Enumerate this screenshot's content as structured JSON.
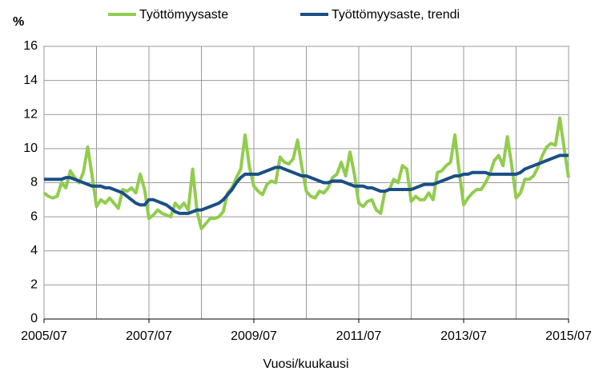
{
  "chart_data": {
    "type": "line",
    "y_label": "%",
    "x_label": "Vuosi/kuukausi",
    "categories": [
      "2005/07",
      null,
      null,
      null,
      null,
      null,
      null,
      null,
      null,
      null,
      null,
      null,
      null,
      null,
      null,
      null,
      null,
      null,
      null,
      null,
      null,
      null,
      null,
      null,
      "2007/07",
      null,
      null,
      null,
      null,
      null,
      null,
      null,
      null,
      null,
      null,
      null,
      null,
      null,
      null,
      null,
      null,
      null,
      null,
      null,
      null,
      null,
      null,
      null,
      "2009/07",
      null,
      null,
      null,
      null,
      null,
      null,
      null,
      null,
      null,
      null,
      null,
      null,
      null,
      null,
      null,
      null,
      null,
      null,
      null,
      null,
      null,
      null,
      null,
      "2011/07",
      null,
      null,
      null,
      null,
      null,
      null,
      null,
      null,
      null,
      null,
      null,
      null,
      null,
      null,
      null,
      null,
      null,
      null,
      null,
      null,
      null,
      null,
      null,
      "2013/07",
      null,
      null,
      null,
      null,
      null,
      null,
      null,
      null,
      null,
      null,
      null,
      null,
      null,
      null,
      null,
      null,
      null,
      null,
      null,
      null,
      null,
      null,
      null,
      "2015/07"
    ],
    "series": [
      {
        "name": "Työttömyysaste",
        "color": "#92cc4f",
        "values": [
          7.4,
          7.2,
          7.1,
          7.2,
          8.0,
          7.7,
          8.7,
          8.3,
          8.0,
          8.6,
          10.1,
          8.4,
          6.6,
          7.0,
          6.8,
          7.1,
          6.8,
          6.5,
          7.6,
          7.5,
          7.7,
          7.4,
          8.5,
          7.6,
          5.9,
          6.1,
          6.4,
          6.2,
          6.1,
          6.0,
          6.8,
          6.5,
          6.8,
          6.4,
          8.8,
          6.3,
          5.3,
          5.6,
          5.9,
          5.9,
          6.0,
          6.3,
          7.4,
          7.7,
          8.3,
          8.8,
          10.8,
          8.9,
          7.8,
          7.5,
          7.3,
          7.9,
          8.1,
          8.0,
          9.5,
          9.2,
          9.1,
          9.4,
          10.5,
          8.9,
          7.5,
          7.2,
          7.1,
          7.5,
          7.4,
          7.7,
          8.3,
          8.5,
          9.2,
          8.4,
          9.8,
          8.5,
          6.8,
          6.6,
          6.9,
          7.0,
          6.4,
          6.2,
          7.5,
          7.6,
          8.2,
          8.0,
          9.0,
          8.8,
          6.9,
          7.2,
          7.0,
          7.0,
          7.4,
          7.0,
          8.6,
          8.7,
          9.0,
          9.2,
          10.8,
          8.6,
          6.7,
          7.1,
          7.4,
          7.6,
          7.6,
          8.0,
          8.5,
          9.3,
          9.6,
          9.0,
          10.7,
          9.0,
          7.1,
          7.4,
          8.2,
          8.2,
          8.4,
          8.9,
          9.6,
          10.1,
          10.3,
          10.2,
          11.8,
          10.0,
          8.3
        ]
      },
      {
        "name": "Työttömyysaste, trendi",
        "color": "#1a4f85",
        "values": [
          8.2,
          8.2,
          8.2,
          8.2,
          8.2,
          8.3,
          8.3,
          8.2,
          8.1,
          8.0,
          7.9,
          7.8,
          7.8,
          7.8,
          7.7,
          7.7,
          7.6,
          7.5,
          7.4,
          7.2,
          7.0,
          6.8,
          6.7,
          6.7,
          7.0,
          7.0,
          6.9,
          6.8,
          6.7,
          6.5,
          6.3,
          6.2,
          6.2,
          6.2,
          6.3,
          6.4,
          6.4,
          6.5,
          6.6,
          6.7,
          6.8,
          7.0,
          7.3,
          7.6,
          8.0,
          8.3,
          8.5,
          8.5,
          8.5,
          8.5,
          8.6,
          8.7,
          8.8,
          8.9,
          8.9,
          8.8,
          8.7,
          8.6,
          8.5,
          8.4,
          8.4,
          8.3,
          8.2,
          8.1,
          8.0,
          8.0,
          8.1,
          8.1,
          8.1,
          8.0,
          7.9,
          7.8,
          7.8,
          7.8,
          7.7,
          7.7,
          7.6,
          7.5,
          7.5,
          7.6,
          7.6,
          7.6,
          7.6,
          7.6,
          7.6,
          7.7,
          7.8,
          7.9,
          7.9,
          7.9,
          8.0,
          8.1,
          8.2,
          8.3,
          8.4,
          8.4,
          8.5,
          8.5,
          8.6,
          8.6,
          8.6,
          8.6,
          8.5,
          8.5,
          8.5,
          8.5,
          8.5,
          8.5,
          8.5,
          8.6,
          8.8,
          8.9,
          9.0,
          9.1,
          9.2,
          9.3,
          9.4,
          9.5,
          9.6,
          9.6,
          9.6
        ]
      }
    ],
    "ylim": [
      0,
      16
    ],
    "yticks": [
      0,
      2,
      4,
      6,
      8,
      10,
      12,
      14,
      16
    ],
    "grid": true,
    "legend": "top"
  }
}
